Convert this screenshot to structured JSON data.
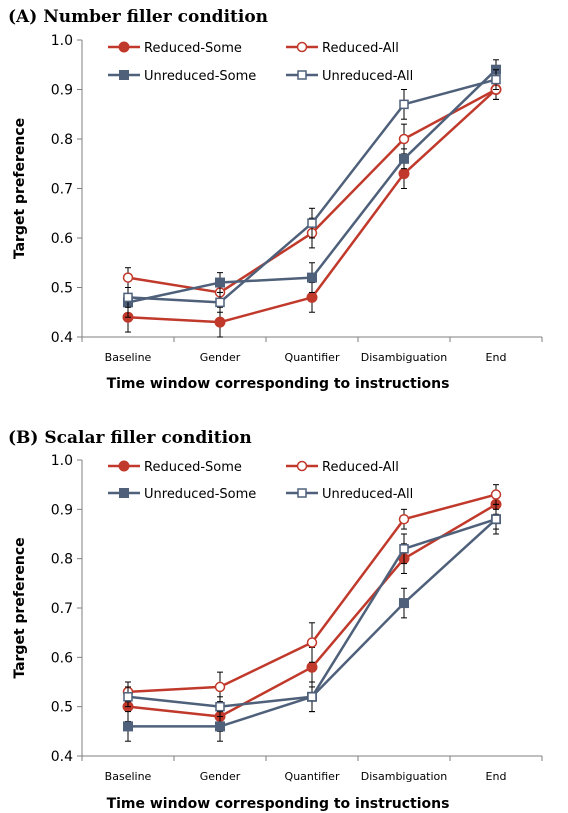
{
  "figure": {
    "charts": [
      {
        "panel_title": "(A) Number filler condition"
      },
      {
        "panel_title": "(B) Scalar filler condition"
      }
    ]
  },
  "chart_data": [
    {
      "type": "line",
      "title": "(A) Number filler condition",
      "xlabel": "Time window corresponding to instructions",
      "ylabel": "Target preference",
      "ylim": [
        0.4,
        1.0
      ],
      "yticks": [
        "0.4",
        "0.5",
        "0.6",
        "0.7",
        "0.8",
        "0.9",
        "1.0"
      ],
      "categories": [
        "Baseline",
        "Gender",
        "Quantifier",
        "Disambiguation",
        "End"
      ],
      "grid": false,
      "legend_position": "top",
      "series": [
        {
          "name": "Reduced-Some",
          "color": "#c0392b",
          "marker": "filled-circle",
          "values": [
            0.44,
            0.43,
            0.48,
            0.73,
            0.9
          ],
          "error": [
            0.03,
            0.03,
            0.03,
            0.03,
            0.02
          ]
        },
        {
          "name": "Reduced-All",
          "color": "#c0392b",
          "marker": "open-circle",
          "values": [
            0.52,
            0.49,
            0.61,
            0.8,
            0.9
          ],
          "error": [
            0.02,
            0.02,
            0.03,
            0.03,
            0.02
          ]
        },
        {
          "name": "Unreduced-Some",
          "color": "#4f607a",
          "marker": "filled-square",
          "values": [
            0.47,
            0.51,
            0.52,
            0.76,
            0.94
          ],
          "error": [
            0.03,
            0.02,
            0.03,
            0.02,
            0.02
          ]
        },
        {
          "name": "Unreduced-All",
          "color": "#4f607a",
          "marker": "open-square",
          "values": [
            0.48,
            0.47,
            0.63,
            0.87,
            0.92
          ],
          "error": [
            0.02,
            0.02,
            0.03,
            0.03,
            0.02
          ]
        }
      ]
    },
    {
      "type": "line",
      "title": "(B) Scalar filler condition",
      "xlabel": "Time window corresponding to instructions",
      "ylabel": "Target preference",
      "ylim": [
        0.4,
        1.0
      ],
      "yticks": [
        "0.4",
        "0.5",
        "0.6",
        "0.7",
        "0.8",
        "0.9",
        "1.0"
      ],
      "categories": [
        "Baseline",
        "Gender",
        "Quantifier",
        "Disambiguation",
        "End"
      ],
      "grid": false,
      "legend_position": "top",
      "series": [
        {
          "name": "Reduced-Some",
          "color": "#c0392b",
          "marker": "filled-circle",
          "values": [
            0.5,
            0.48,
            0.58,
            0.8,
            0.91
          ],
          "error": [
            0.03,
            0.03,
            0.04,
            0.03,
            0.02
          ]
        },
        {
          "name": "Reduced-All",
          "color": "#c0392b",
          "marker": "open-circle",
          "values": [
            0.53,
            0.54,
            0.63,
            0.88,
            0.93
          ],
          "error": [
            0.02,
            0.03,
            0.04,
            0.02,
            0.02
          ]
        },
        {
          "name": "Unreduced-Some",
          "color": "#4f607a",
          "marker": "filled-square",
          "values": [
            0.46,
            0.46,
            0.52,
            0.71,
            0.88
          ],
          "error": [
            0.03,
            0.03,
            0.03,
            0.03,
            0.03
          ]
        },
        {
          "name": "Unreduced-All",
          "color": "#4f607a",
          "marker": "open-square",
          "values": [
            0.52,
            0.5,
            0.52,
            0.82,
            0.88
          ],
          "error": [
            0.02,
            0.02,
            0.03,
            0.03,
            0.02
          ]
        }
      ]
    }
  ]
}
